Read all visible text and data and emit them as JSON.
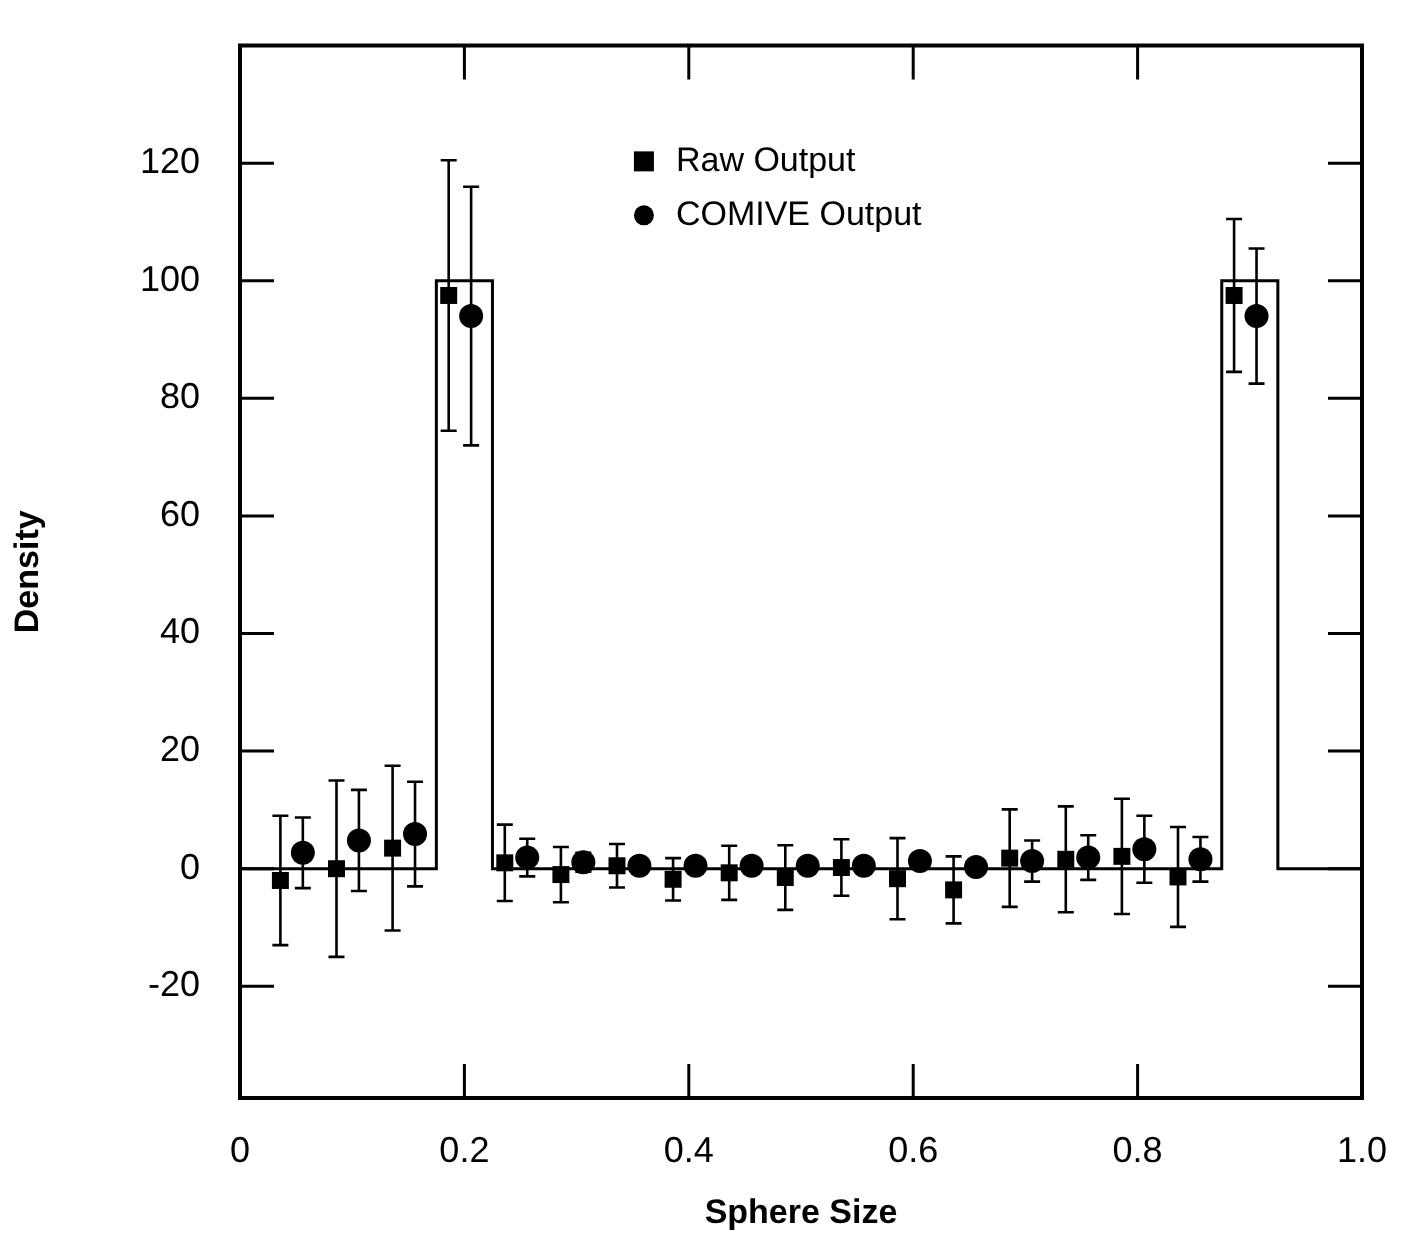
{
  "chart_data": {
    "type": "scatter",
    "xlabel": "Sphere Size",
    "ylabel": "Density",
    "xlim": [
      0,
      1
    ],
    "xticks": [
      0,
      0.2,
      0.4,
      0.6,
      0.8,
      {
        "value": 1,
        "label": "1.0"
      }
    ],
    "ylim": [
      -39,
      140
    ],
    "yticks": [
      -20,
      0,
      20,
      40,
      60,
      80,
      100,
      120
    ],
    "grid": false,
    "legend": "top",
    "series": [
      {
        "type": "step",
        "color": "#000000",
        "marker": "none",
        "x": [
          0,
          0.175,
          0.225,
          0.875,
          0.925,
          1
        ],
        "values": [
          0,
          100,
          0,
          100,
          0,
          0
        ]
      },
      {
        "name": "Raw Output",
        "color": "#000000",
        "marker": "square",
        "x": [
          0.036,
          0.086,
          0.136,
          0.186,
          0.236,
          0.286,
          0.336,
          0.386,
          0.436,
          0.486,
          0.536,
          0.586,
          0.636,
          0.686,
          0.736,
          0.786,
          0.836,
          0.886
        ],
        "values": [
          -2,
          0,
          3.5,
          97.5,
          1,
          -1,
          0.5,
          -1.8,
          -0.7,
          -1.5,
          0.2,
          -1.7,
          -3.6,
          1.8,
          1.6,
          2.1,
          -1.4,
          97.5
        ],
        "errors": [
          11,
          15,
          14,
          23,
          6.5,
          4.7,
          3.7,
          3.6,
          4.6,
          5.5,
          4.8,
          6.9,
          5.7,
          8.3,
          9,
          9.8,
          8.5,
          13
        ]
      },
      {
        "name": "COMIVE Output",
        "color": "#000000",
        "marker": "circle",
        "x": [
          0.056,
          0.106,
          0.156,
          0.206,
          0.256,
          0.306,
          0.356,
          0.406,
          0.456,
          0.506,
          0.556,
          0.606,
          0.656,
          0.706,
          0.756,
          0.806,
          0.856,
          0.906
        ],
        "values": [
          2.7,
          4.8,
          5.9,
          94,
          1.9,
          1.1,
          0.5,
          0.5,
          0.5,
          0.5,
          0.5,
          1.3,
          0.3,
          1.3,
          1.9,
          3.3,
          1.6,
          94
        ],
        "errors": [
          6,
          8.6,
          8.9,
          22,
          3.2,
          1.6,
          null,
          null,
          null,
          null,
          null,
          null,
          null,
          3.5,
          3.8,
          5.7,
          3.8,
          11.5
        ]
      }
    ]
  }
}
